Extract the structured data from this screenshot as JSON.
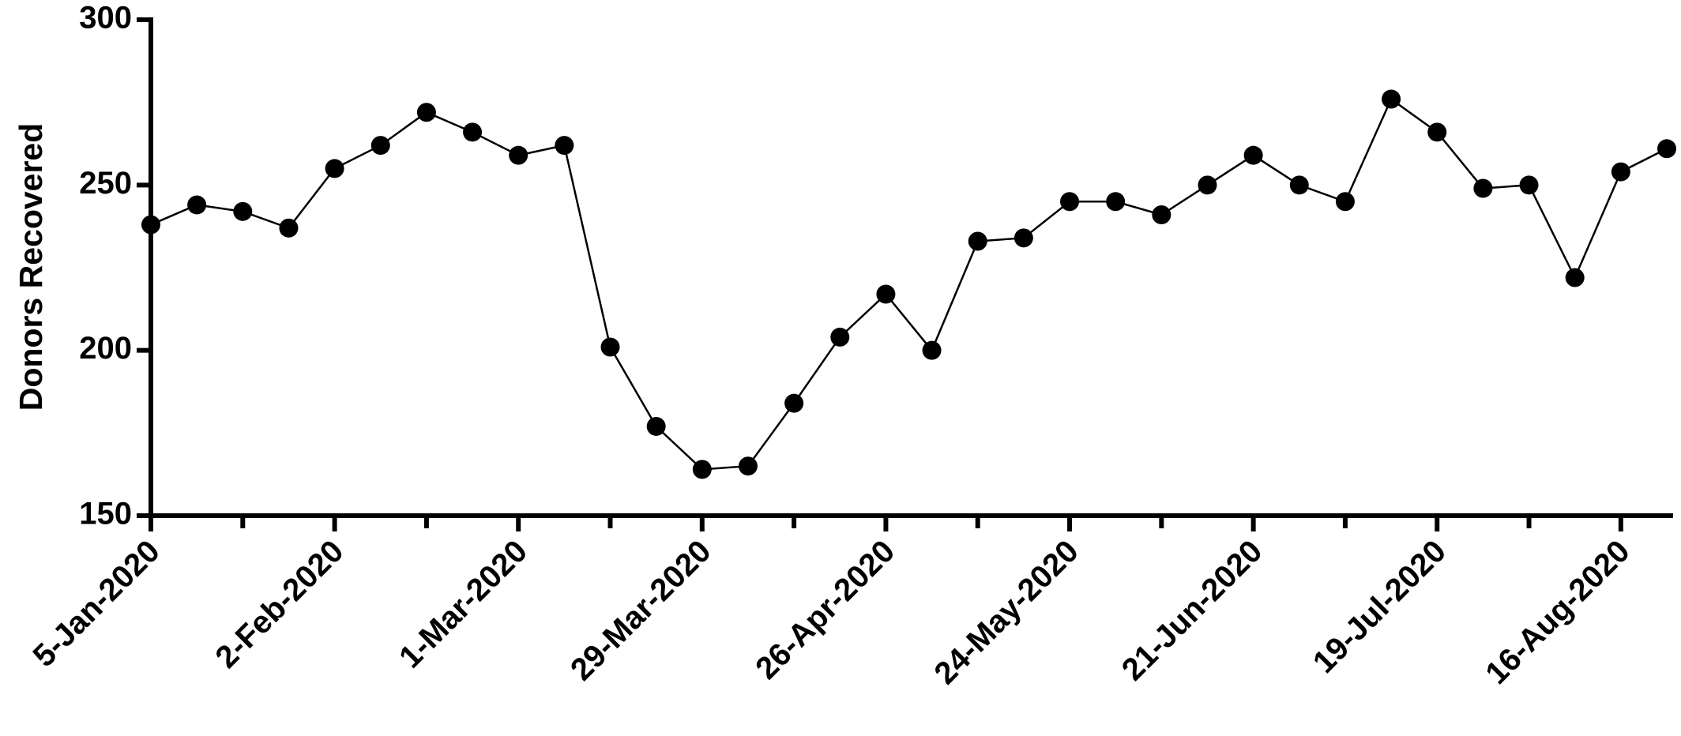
{
  "chart_data": {
    "type": "line",
    "y_label": "Donors Recovered",
    "x": [
      "2020-01-05",
      "2020-01-12",
      "2020-01-19",
      "2020-01-26",
      "2020-02-02",
      "2020-02-09",
      "2020-02-16",
      "2020-02-23",
      "2020-03-01",
      "2020-03-08",
      "2020-03-15",
      "2020-03-22",
      "2020-03-29",
      "2020-04-05",
      "2020-04-12",
      "2020-04-19",
      "2020-04-26",
      "2020-05-03",
      "2020-05-10",
      "2020-05-17",
      "2020-05-24",
      "2020-05-31",
      "2020-06-07",
      "2020-06-14",
      "2020-06-21",
      "2020-06-28",
      "2020-07-05",
      "2020-07-12",
      "2020-07-19",
      "2020-07-26",
      "2020-08-02",
      "2020-08-09",
      "2020-08-16",
      "2020-08-23"
    ],
    "series": [
      {
        "name": "Donors Recovered",
        "color": "#000000",
        "values": [
          238,
          244,
          242,
          237,
          255,
          262,
          272,
          266,
          259,
          262,
          201,
          177,
          164,
          165,
          184,
          204,
          217,
          200,
          233,
          234,
          245,
          245,
          241,
          250,
          259,
          250,
          245,
          276,
          266,
          249,
          250,
          222,
          254,
          261
        ]
      }
    ],
    "xlim": [
      "2020-01-05",
      "2020-08-23"
    ],
    "xticks": [
      {
        "value": "2020-01-05",
        "label": "5-Jan-2020"
      },
      {
        "value": "2020-02-02",
        "label": "2-Feb-2020"
      },
      {
        "value": "2020-03-01",
        "label": "1-Mar-2020"
      },
      {
        "value": "2020-03-29",
        "label": "29-Mar-2020"
      },
      {
        "value": "2020-04-26",
        "label": "26-Apr-2020"
      },
      {
        "value": "2020-05-24",
        "label": "24-May-2020"
      },
      {
        "value": "2020-06-21",
        "label": "21-Jun-2020"
      },
      {
        "value": "2020-07-19",
        "label": "19-Jul-2020"
      },
      {
        "value": "2020-08-16",
        "label": "16-Aug-2020"
      }
    ],
    "xminor_ticks": [
      "2020-01-19",
      "2020-02-16",
      "2020-03-15",
      "2020-04-12",
      "2020-05-10",
      "2020-06-07",
      "2020-07-05",
      "2020-08-02"
    ],
    "ylim": [
      150,
      300
    ],
    "yticks": [
      150,
      200,
      250,
      300
    ],
    "grid": false
  }
}
